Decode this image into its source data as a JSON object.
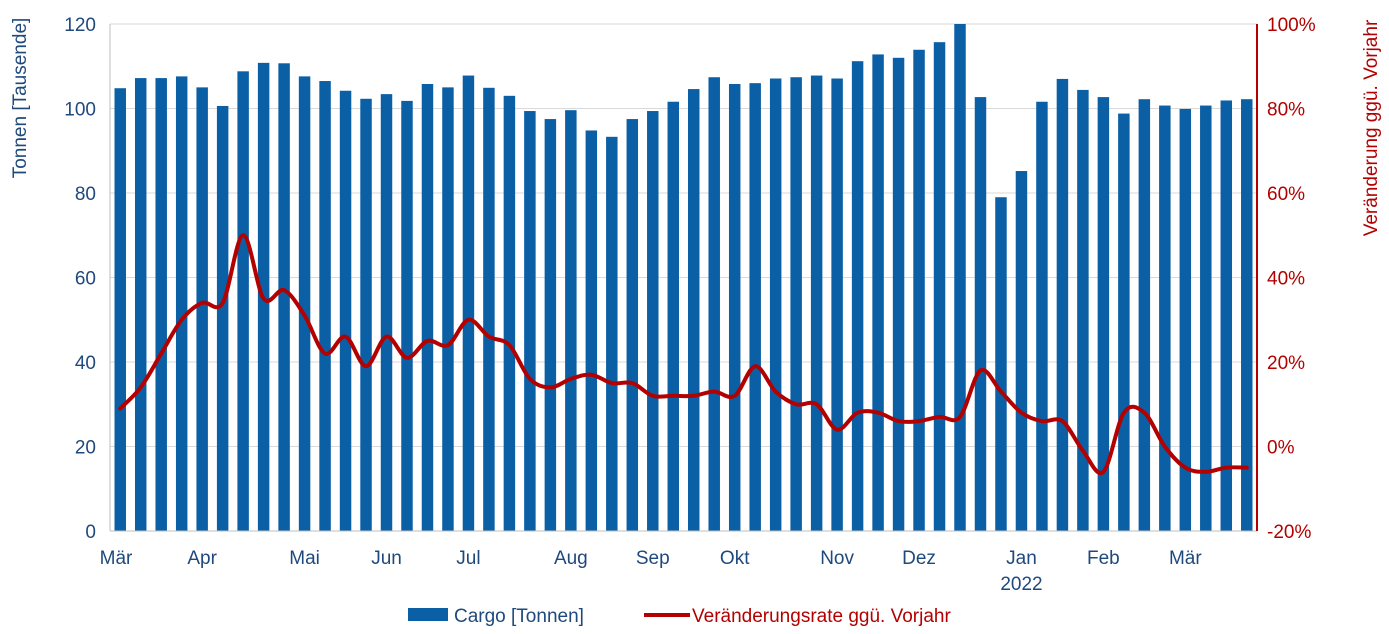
{
  "chart_data": {
    "type": "bar+line",
    "y_left": {
      "label": "Tonnen [Tausende]",
      "ticks": [
        "0",
        "20",
        "40",
        "60",
        "80",
        "100",
        "120"
      ],
      "range": [
        0,
        120
      ]
    },
    "y_right": {
      "label": "Veränderung ggü. Vorjahr",
      "ticks": [
        "-20%",
        "0%",
        "20%",
        "40%",
        "60%",
        "80%",
        "100%"
      ],
      "range": [
        -20,
        100
      ]
    },
    "x_labels": [
      {
        "text": "Mär",
        "week": 0
      },
      {
        "text": "Apr",
        "week": 4
      },
      {
        "text": "Mai",
        "week": 9
      },
      {
        "text": "Jun",
        "week": 13
      },
      {
        "text": "Jul",
        "week": 17
      },
      {
        "text": "Aug",
        "week": 22
      },
      {
        "text": "Sep",
        "week": 26
      },
      {
        "text": "Okt",
        "week": 30
      },
      {
        "text": "Nov",
        "week": 35
      },
      {
        "text": "Dez",
        "week": 39
      },
      {
        "text": "Jan",
        "week": 44
      },
      {
        "text": "Feb",
        "week": 48
      },
      {
        "text": "Mär",
        "week": 52
      }
    ],
    "year_label": {
      "text": "2022",
      "week": 44
    },
    "series": [
      {
        "name": "Cargo [Tonnen]",
        "type": "bar",
        "color": "#0b5fa5",
        "values": [
          104.8,
          107.2,
          107.2,
          107.6,
          105.0,
          100.6,
          108.8,
          110.8,
          110.7,
          107.6,
          106.5,
          104.2,
          102.3,
          103.4,
          101.8,
          105.8,
          105.0,
          107.8,
          104.9,
          103.0,
          99.4,
          97.5,
          99.6,
          94.8,
          93.3,
          97.5,
          99.4,
          101.6,
          104.6,
          107.4,
          105.8,
          106.0,
          107.1,
          107.4,
          107.8,
          107.1,
          111.2,
          112.8,
          112.0,
          113.9,
          115.7,
          120.0,
          102.7,
          79.0,
          85.2,
          101.6,
          107.0,
          104.4,
          102.7,
          98.8,
          102.2,
          100.7,
          99.9,
          100.7,
          101.9,
          102.2
        ]
      },
      {
        "name": "Veränderungsrate ggü. Vorjahr",
        "type": "line",
        "color": "#b30000",
        "values": [
          9,
          14,
          22,
          30,
          34,
          34,
          50,
          35,
          37,
          31,
          22,
          26,
          19,
          26,
          21,
          25,
          24,
          30,
          26,
          24,
          16,
          14,
          16,
          17,
          15,
          15,
          12,
          12,
          12,
          13,
          12,
          19,
          13,
          10,
          10,
          4,
          8,
          8,
          6,
          6,
          7,
          7,
          18,
          13,
          8,
          6,
          6,
          -1,
          -6,
          8,
          8,
          0,
          -5,
          -6,
          -5,
          -5
        ]
      }
    ],
    "legend": {
      "bar_label": "Cargo [Tonnen]",
      "line_label": "Veränderungsrate ggü. Vorjahr",
      "position": "bottom-center"
    }
  }
}
